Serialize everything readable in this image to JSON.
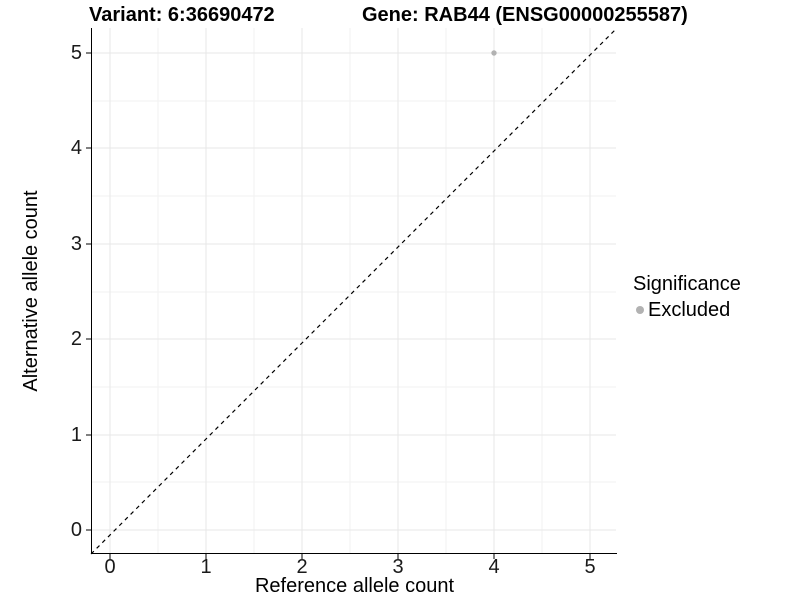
{
  "titles": {
    "variant": "Variant: 6:36690472",
    "gene": "Gene: RAB44 (ENSG00000255587)"
  },
  "chart_data": {
    "type": "scatter",
    "title_left": "Variant: 6:36690472",
    "title_right": "Gene: RAB44 (ENSG00000255587)",
    "xlabel": "Reference allele count",
    "ylabel": "Alternative allele count",
    "xlim": [
      -0.25,
      5.25
    ],
    "ylim": [
      -0.25,
      5.25
    ],
    "x_ticks": [
      "0",
      "1",
      "2",
      "3",
      "4",
      "5"
    ],
    "y_ticks": [
      "0",
      "1",
      "2",
      "3",
      "4",
      "5"
    ],
    "grid": "major and minor gridlines, light gray on white",
    "legend_position": "right",
    "points": [
      {
        "x": 4,
        "y": 5,
        "series": "Excluded",
        "color": "#b2b2b2"
      }
    ],
    "reference_line": {
      "type": "identity y=x",
      "style": "dashed",
      "color": "#000000"
    },
    "legend": {
      "title": "Significance",
      "entries": [
        {
          "label": "Excluded",
          "color": "#b2b2b2"
        }
      ]
    }
  },
  "colors": {
    "background": "#ffffff",
    "point_gray": "#b2b2b2",
    "grid_major": "#e7e7e7",
    "grid_minor": "#f2f2f2",
    "axis_line": "#000000",
    "text": "#000000"
  }
}
